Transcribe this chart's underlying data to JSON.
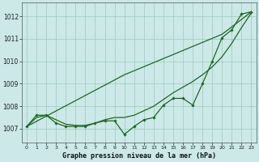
{
  "title": "Graphe pression niveau de la mer (hPa)",
  "bg_color": "#cce8e8",
  "grid_color": "#99ccbb",
  "line_color": "#1a6b1a",
  "xlim": [
    -0.5,
    23.5
  ],
  "ylim": [
    1006.4,
    1012.6
  ],
  "yticks": [
    1007,
    1008,
    1009,
    1010,
    1011,
    1012
  ],
  "xticks": [
    0,
    1,
    2,
    3,
    4,
    5,
    6,
    7,
    8,
    9,
    10,
    11,
    12,
    13,
    14,
    15,
    16,
    17,
    18,
    19,
    20,
    21,
    22,
    23
  ],
  "series_markers": [
    1007.1,
    1007.6,
    1007.6,
    1007.25,
    1007.1,
    1007.1,
    1007.1,
    1007.25,
    1007.35,
    1007.35,
    1006.75,
    1007.1,
    1007.4,
    1007.5,
    1008.05,
    1008.35,
    1008.35,
    1008.05,
    1009.0,
    1010.0,
    1011.05,
    1011.4,
    1012.1,
    1012.2
  ],
  "series_smooth": [
    1007.1,
    1007.5,
    1007.6,
    1007.4,
    1007.2,
    1007.15,
    1007.15,
    1007.25,
    1007.4,
    1007.5,
    1007.5,
    1007.6,
    1007.8,
    1008.0,
    1008.3,
    1008.6,
    1008.85,
    1009.1,
    1009.4,
    1009.75,
    1010.2,
    1010.8,
    1011.5,
    1012.15
  ],
  "series_diagonal": [
    1007.1,
    1007.33,
    1007.56,
    1007.79,
    1008.02,
    1008.25,
    1008.48,
    1008.71,
    1008.94,
    1009.17,
    1009.4,
    1009.58,
    1009.76,
    1009.94,
    1010.12,
    1010.3,
    1010.48,
    1010.66,
    1010.84,
    1011.02,
    1011.2,
    1011.53,
    1011.86,
    1012.2
  ]
}
